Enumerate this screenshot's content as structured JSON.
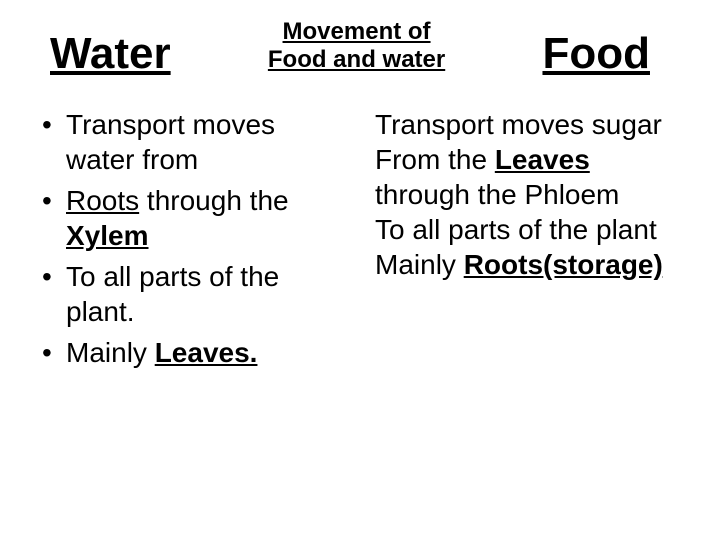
{
  "header": {
    "left": "Water",
    "mid_line1": "Movement of",
    "mid_line2": "Food and water",
    "right": "Food"
  },
  "left_col": {
    "b1_a": "Transport moves water from",
    "b2_a": "Roots",
    "b2_b": " through the ",
    "b2_c": "Xylem",
    "b3_a": "To all parts of the plant.",
    "b4_a": "Mainly ",
    "b4_b": "Leaves."
  },
  "right_col": {
    "l1": "Transport moves sugar",
    "l2a": "From the ",
    "l2b": "Leaves",
    "l2c": " through the Phloem",
    "l3": "To all parts of the plant",
    "l4a": "Mainly ",
    "l4b": "Roots(storage)"
  },
  "colors": {
    "background": "#ffffff",
    "text": "#000000"
  },
  "typography": {
    "font_family": "Arial",
    "title_size_pt": 44,
    "subtitle_size_pt": 24,
    "body_size_pt": 28
  }
}
